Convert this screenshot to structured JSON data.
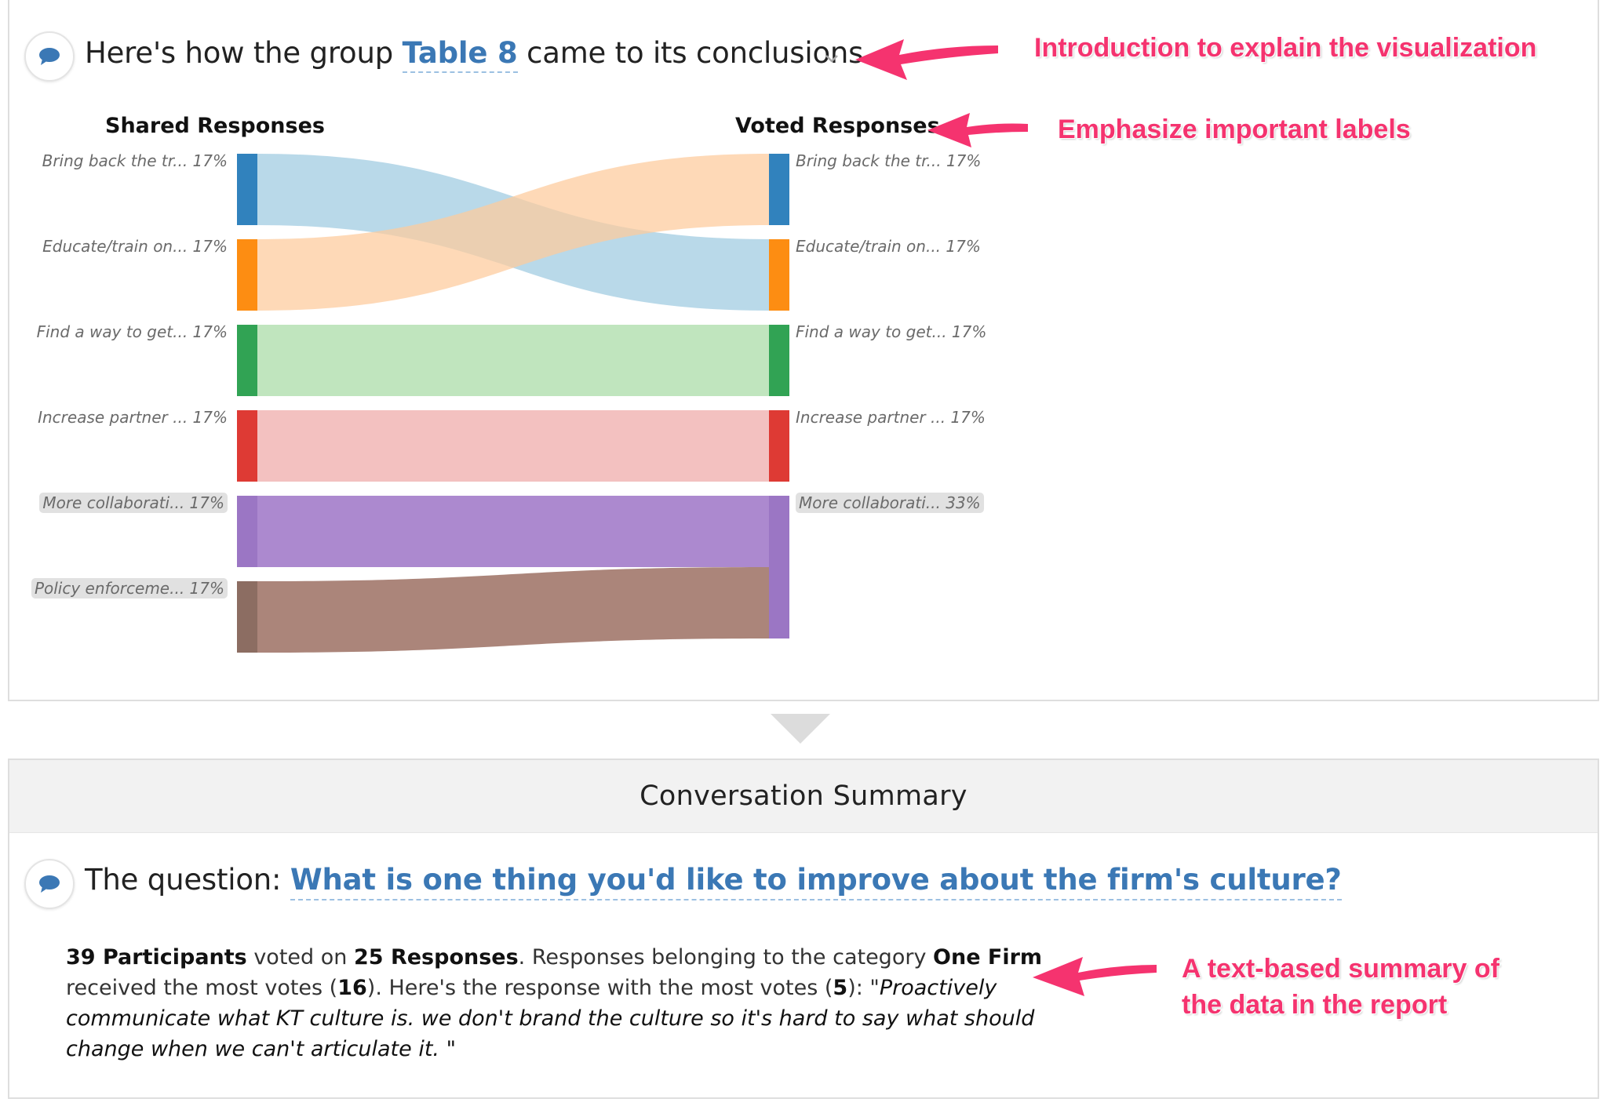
{
  "intro": {
    "prefix": "Here's how the group",
    "group_name": "Table 8",
    "suffix": "came to its conclusions."
  },
  "chart_data": {
    "type": "sankey",
    "left_title": "Shared Responses",
    "right_title": "Voted Responses",
    "left_nodes": [
      {
        "label": "Bring back the tr...",
        "pct": "17%",
        "color": "#3182bd",
        "highlighted": false
      },
      {
        "label": "Educate/train on...",
        "pct": "17%",
        "color": "#fd8d12",
        "highlighted": false
      },
      {
        "label": "Find a way to get...",
        "pct": "17%",
        "color": "#31a354",
        "highlighted": false
      },
      {
        "label": "Increase partner ...",
        "pct": "17%",
        "color": "#de3a34",
        "highlighted": false
      },
      {
        "label": "More collaborati...",
        "pct": "17%",
        "color": "#9b76c4",
        "highlighted": true
      },
      {
        "label": "Policy enforceme...",
        "pct": "17%",
        "color": "#8c6d62",
        "highlighted": true
      }
    ],
    "right_nodes": [
      {
        "label": "Bring back the tr...",
        "pct": "17%",
        "color": "#3182bd",
        "highlighted": false
      },
      {
        "label": "Educate/train on...",
        "pct": "17%",
        "color": "#fd8d12",
        "highlighted": false
      },
      {
        "label": "Find a way to get...",
        "pct": "17%",
        "color": "#31a354",
        "highlighted": false
      },
      {
        "label": "Increase partner ...",
        "pct": "17%",
        "color": "#de3a34",
        "highlighted": false
      },
      {
        "label": "More collaborati...",
        "pct": "33%",
        "color": "#9b76c4",
        "highlighted": true
      }
    ],
    "links": [
      {
        "source": 0,
        "target": 1,
        "value": 1,
        "color": "#9ecae1"
      },
      {
        "source": 1,
        "target": 0,
        "value": 1,
        "color": "#fdcb9b"
      },
      {
        "source": 2,
        "target": 2,
        "value": 1,
        "color": "#a8dba5"
      },
      {
        "source": 3,
        "target": 3,
        "value": 1,
        "color": "#efa9a7"
      },
      {
        "source": 4,
        "target": 4,
        "value": 1,
        "color": "#8c5bbd"
      },
      {
        "source": 5,
        "target": 4,
        "value": 1,
        "color": "#8a5646"
      }
    ]
  },
  "summary": {
    "header_title": "Conversation Summary",
    "question_prefix": "The question:",
    "question_text": "What is one thing you'd like to improve about the firm's culture?",
    "participants": "39 Participants",
    "voted_on": " voted on ",
    "responses": "25 Responses",
    "after_responses": ". Responses belonging to the category ",
    "category": "One Firm",
    "after_category": " received the most votes (",
    "category_votes": "16",
    "after_votes": "). Here's the response with the most votes (",
    "top_votes": "5",
    "after_top_votes": "): \"",
    "top_response": "Proactively communicate what KT culture is. we don't brand the culture so it's hard to say what should change when we can't articulate it. \""
  },
  "annotations": {
    "intro": "Introduction to explain the visualization",
    "labels": "Emphasize important labels",
    "summary_line1": "A text-based summary of",
    "summary_line2": "the data in the report"
  },
  "colors": {
    "link_blue": "#3b78b5",
    "annotation_pink": "#f5336f"
  }
}
